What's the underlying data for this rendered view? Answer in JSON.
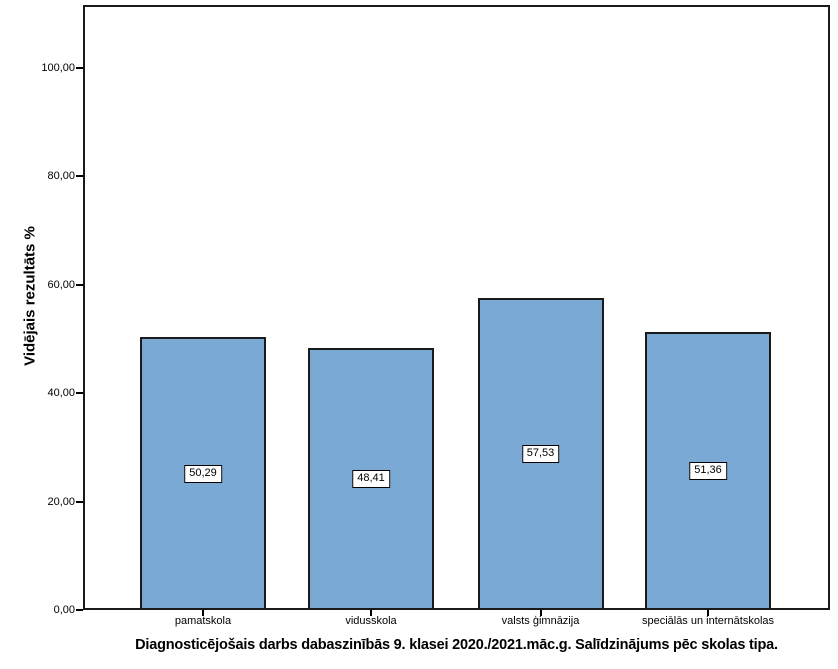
{
  "figure": {
    "background": "#FFFFFF"
  },
  "chart_data": {
    "type": "bar",
    "title": "Diagnosticējošais darbs dabaszinībās 9. klasei 2020./2021.māc.g. Salīdzinājums pēc skolas tipa.",
    "xlabel": "",
    "ylabel": "Vidējais rezultāts %",
    "categories": [
      "pamatskola",
      "vidusskola",
      "valsts ģimnāzija",
      "speciālās un internātskolas"
    ],
    "values": [
      50.29,
      48.41,
      57.53,
      51.36
    ],
    "value_labels": [
      "50,29",
      "48,41",
      "57,53",
      "51,36"
    ],
    "y_ticks": [
      {
        "label": "0,00",
        "value": 0
      },
      {
        "label": "20,00",
        "value": 20
      },
      {
        "label": "40,00",
        "value": 40
      },
      {
        "label": "60,00",
        "value": 60
      },
      {
        "label": "80,00",
        "value": 80
      },
      {
        "label": "100,00",
        "value": 100
      }
    ],
    "ylim": [
      0,
      111.5
    ],
    "grid": false,
    "legend": null,
    "bar_color": "#7AA9D6",
    "bar_border_color": "#1A1A1A",
    "frame_color": "#1A1A1A"
  }
}
